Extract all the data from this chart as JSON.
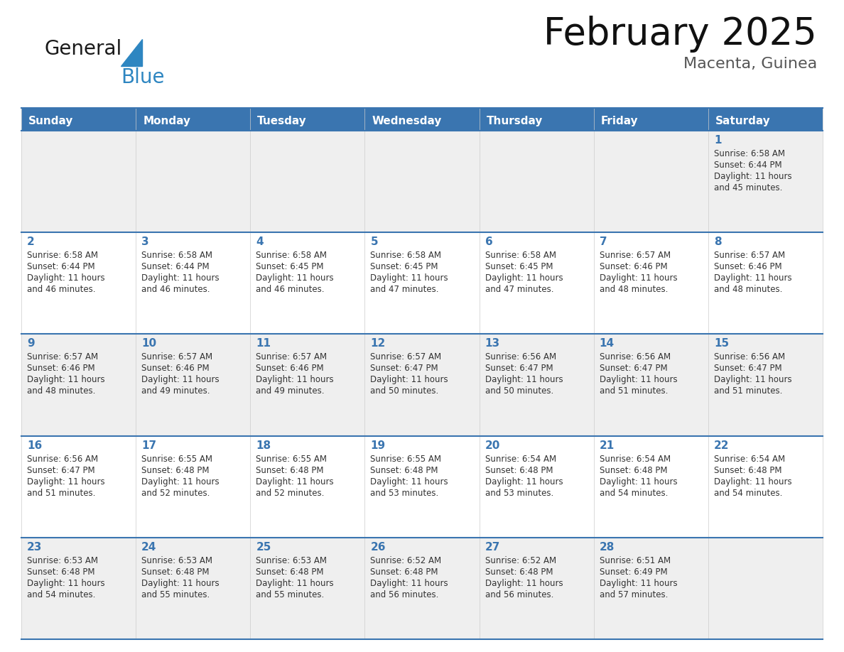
{
  "title": "February 2025",
  "subtitle": "Macenta, Guinea",
  "days_of_week": [
    "Sunday",
    "Monday",
    "Tuesday",
    "Wednesday",
    "Thursday",
    "Friday",
    "Saturday"
  ],
  "header_bg": "#3A75B0",
  "header_text": "#FFFFFF",
  "row_bg_odd": "#EFEFEF",
  "row_bg_even": "#FFFFFF",
  "border_color": "#3A75B0",
  "day_num_color": "#3A75B0",
  "text_color": "#333333",
  "logo_general_color": "#1a1a1a",
  "logo_blue_color": "#2E86C1",
  "calendar_data": [
    {
      "day": 1,
      "col": 6,
      "row": 0,
      "sunrise": "6:58 AM",
      "sunset": "6:44 PM",
      "daylight": "11 hours and 45 minutes."
    },
    {
      "day": 2,
      "col": 0,
      "row": 1,
      "sunrise": "6:58 AM",
      "sunset": "6:44 PM",
      "daylight": "11 hours and 46 minutes."
    },
    {
      "day": 3,
      "col": 1,
      "row": 1,
      "sunrise": "6:58 AM",
      "sunset": "6:44 PM",
      "daylight": "11 hours and 46 minutes."
    },
    {
      "day": 4,
      "col": 2,
      "row": 1,
      "sunrise": "6:58 AM",
      "sunset": "6:45 PM",
      "daylight": "11 hours and 46 minutes."
    },
    {
      "day": 5,
      "col": 3,
      "row": 1,
      "sunrise": "6:58 AM",
      "sunset": "6:45 PM",
      "daylight": "11 hours and 47 minutes."
    },
    {
      "day": 6,
      "col": 4,
      "row": 1,
      "sunrise": "6:58 AM",
      "sunset": "6:45 PM",
      "daylight": "11 hours and 47 minutes."
    },
    {
      "day": 7,
      "col": 5,
      "row": 1,
      "sunrise": "6:57 AM",
      "sunset": "6:46 PM",
      "daylight": "11 hours and 48 minutes."
    },
    {
      "day": 8,
      "col": 6,
      "row": 1,
      "sunrise": "6:57 AM",
      "sunset": "6:46 PM",
      "daylight": "11 hours and 48 minutes."
    },
    {
      "day": 9,
      "col": 0,
      "row": 2,
      "sunrise": "6:57 AM",
      "sunset": "6:46 PM",
      "daylight": "11 hours and 48 minutes."
    },
    {
      "day": 10,
      "col": 1,
      "row": 2,
      "sunrise": "6:57 AM",
      "sunset": "6:46 PM",
      "daylight": "11 hours and 49 minutes."
    },
    {
      "day": 11,
      "col": 2,
      "row": 2,
      "sunrise": "6:57 AM",
      "sunset": "6:46 PM",
      "daylight": "11 hours and 49 minutes."
    },
    {
      "day": 12,
      "col": 3,
      "row": 2,
      "sunrise": "6:57 AM",
      "sunset": "6:47 PM",
      "daylight": "11 hours and 50 minutes."
    },
    {
      "day": 13,
      "col": 4,
      "row": 2,
      "sunrise": "6:56 AM",
      "sunset": "6:47 PM",
      "daylight": "11 hours and 50 minutes."
    },
    {
      "day": 14,
      "col": 5,
      "row": 2,
      "sunrise": "6:56 AM",
      "sunset": "6:47 PM",
      "daylight": "11 hours and 51 minutes."
    },
    {
      "day": 15,
      "col": 6,
      "row": 2,
      "sunrise": "6:56 AM",
      "sunset": "6:47 PM",
      "daylight": "11 hours and 51 minutes."
    },
    {
      "day": 16,
      "col": 0,
      "row": 3,
      "sunrise": "6:56 AM",
      "sunset": "6:47 PM",
      "daylight": "11 hours and 51 minutes."
    },
    {
      "day": 17,
      "col": 1,
      "row": 3,
      "sunrise": "6:55 AM",
      "sunset": "6:48 PM",
      "daylight": "11 hours and 52 minutes."
    },
    {
      "day": 18,
      "col": 2,
      "row": 3,
      "sunrise": "6:55 AM",
      "sunset": "6:48 PM",
      "daylight": "11 hours and 52 minutes."
    },
    {
      "day": 19,
      "col": 3,
      "row": 3,
      "sunrise": "6:55 AM",
      "sunset": "6:48 PM",
      "daylight": "11 hours and 53 minutes."
    },
    {
      "day": 20,
      "col": 4,
      "row": 3,
      "sunrise": "6:54 AM",
      "sunset": "6:48 PM",
      "daylight": "11 hours and 53 minutes."
    },
    {
      "day": 21,
      "col": 5,
      "row": 3,
      "sunrise": "6:54 AM",
      "sunset": "6:48 PM",
      "daylight": "11 hours and 54 minutes."
    },
    {
      "day": 22,
      "col": 6,
      "row": 3,
      "sunrise": "6:54 AM",
      "sunset": "6:48 PM",
      "daylight": "11 hours and 54 minutes."
    },
    {
      "day": 23,
      "col": 0,
      "row": 4,
      "sunrise": "6:53 AM",
      "sunset": "6:48 PM",
      "daylight": "11 hours and 54 minutes."
    },
    {
      "day": 24,
      "col": 1,
      "row": 4,
      "sunrise": "6:53 AM",
      "sunset": "6:48 PM",
      "daylight": "11 hours and 55 minutes."
    },
    {
      "day": 25,
      "col": 2,
      "row": 4,
      "sunrise": "6:53 AM",
      "sunset": "6:48 PM",
      "daylight": "11 hours and 55 minutes."
    },
    {
      "day": 26,
      "col": 3,
      "row": 4,
      "sunrise": "6:52 AM",
      "sunset": "6:48 PM",
      "daylight": "11 hours and 56 minutes."
    },
    {
      "day": 27,
      "col": 4,
      "row": 4,
      "sunrise": "6:52 AM",
      "sunset": "6:48 PM",
      "daylight": "11 hours and 56 minutes."
    },
    {
      "day": 28,
      "col": 5,
      "row": 4,
      "sunrise": "6:51 AM",
      "sunset": "6:49 PM",
      "daylight": "11 hours and 57 minutes."
    }
  ]
}
